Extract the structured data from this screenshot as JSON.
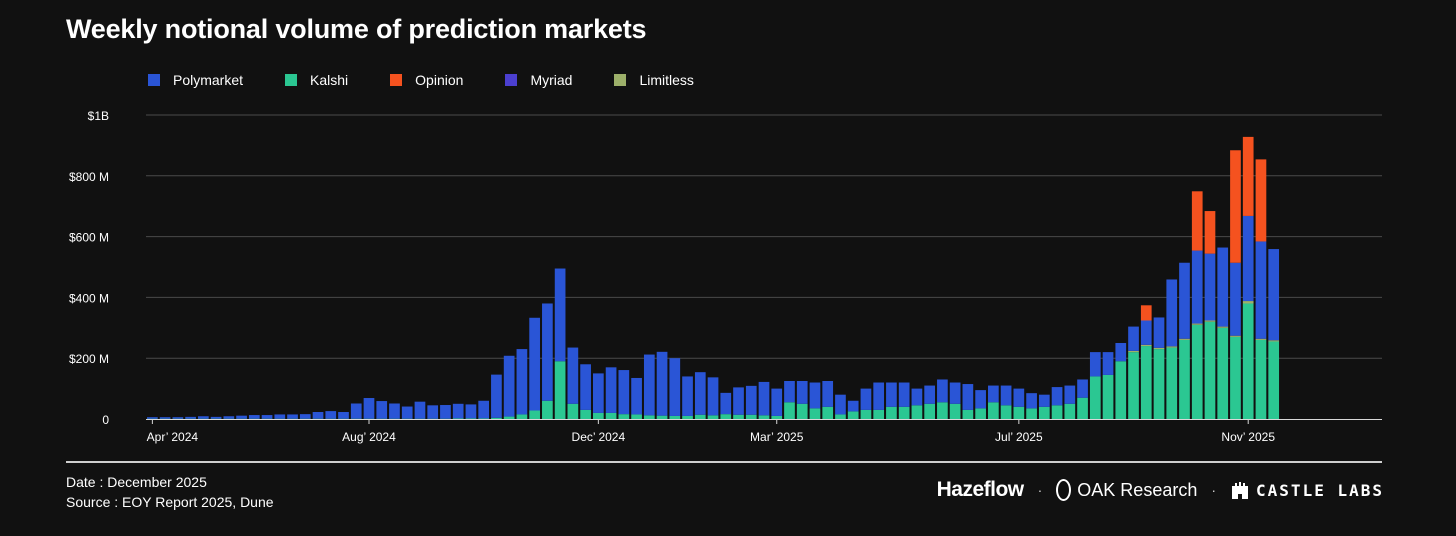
{
  "header": {
    "title": "Weekly notional volume of prediction markets"
  },
  "footer": {
    "date": "Date : December 2025",
    "source": "Source : EOY Report 2025, Dune",
    "brands": {
      "hazeflow": "Hazeflow",
      "oak": "OAK Research",
      "castle": "CASTLE LABS",
      "separator": "·"
    }
  },
  "colors": {
    "Polymarket": "#2a55d6",
    "Kalshi": "#2bc792",
    "Opinion": "#f5521f",
    "Myriad": "#4b3fd0",
    "Limitless": "#9db06a",
    "grid": "#4a4a4a",
    "axis": "#d9d9d9"
  },
  "chart_data": {
    "type": "bar",
    "stacked": true,
    "title": "Weekly notional volume of prediction markets",
    "xlabel": "",
    "ylabel": "",
    "ylim": [
      0,
      1000
    ],
    "y_unit": "M",
    "y_ticks": [
      {
        "value": 0,
        "label": "0"
      },
      {
        "value": 200,
        "label": "$200 M"
      },
      {
        "value": 400,
        "label": "$400 M"
      },
      {
        "value": 600,
        "label": "$600 M"
      },
      {
        "value": 800,
        "label": "$800 M"
      },
      {
        "value": 1000,
        "label": "$1B"
      }
    ],
    "x_tick_labels": [
      {
        "index": 0,
        "label": "Apr’ 2024"
      },
      {
        "index": 17,
        "label": "Aug’ 2024"
      },
      {
        "index": 35,
        "label": "Dec’ 2024"
      },
      {
        "index": 49,
        "label": "Mar’ 2025"
      },
      {
        "index": 68,
        "label": "Jul’ 2025"
      },
      {
        "index": 86,
        "label": "Nov’ 2025"
      }
    ],
    "legend_position": "top-left",
    "grid": true,
    "bar_count": 97,
    "series": [
      {
        "name": "Kalshi",
        "values": [
          1,
          1,
          1,
          1,
          1,
          1,
          1,
          1,
          1,
          1,
          1,
          1,
          1,
          1,
          1,
          1,
          1,
          1,
          1,
          1,
          1,
          1,
          1,
          1,
          2,
          2,
          2,
          4,
          8,
          15,
          28,
          60,
          190,
          50,
          30,
          20,
          20,
          16,
          15,
          12,
          11,
          10,
          10,
          14,
          12,
          16,
          14,
          14,
          12,
          10,
          55,
          50,
          35,
          40,
          15,
          25,
          30,
          30,
          40,
          40,
          45,
          50,
          55,
          50,
          30,
          35,
          55,
          45,
          40,
          35,
          40,
          45,
          50,
          70,
          140,
          145,
          190,
          220,
          240,
          230,
          235,
          260,
          310,
          320,
          300,
          270,
          380,
          260,
          255,
          0,
          0,
          0,
          0,
          0,
          0,
          0,
          0
        ]
      },
      {
        "name": "Limitless",
        "values": [
          0,
          0,
          0,
          0,
          0,
          0,
          0,
          0,
          0,
          0,
          0,
          0,
          0,
          0,
          0,
          0,
          0,
          0,
          0,
          0,
          0,
          0,
          0,
          0,
          0,
          0,
          0,
          0,
          0,
          0,
          0,
          0,
          0,
          0,
          0,
          0,
          0,
          0,
          0,
          0,
          0,
          0,
          0,
          0,
          0,
          0,
          0,
          0,
          0,
          0,
          0,
          0,
          0,
          0,
          0,
          0,
          0,
          0,
          0,
          0,
          0,
          0,
          0,
          0,
          0,
          0,
          0,
          0,
          0,
          0,
          0,
          0,
          0,
          0,
          0,
          0,
          0,
          4,
          4,
          4,
          4,
          4,
          4,
          4,
          4,
          4,
          8,
          4,
          4,
          0,
          0,
          0,
          0,
          0,
          0,
          0,
          0
        ]
      },
      {
        "name": "Myriad",
        "values": [
          0,
          0,
          0,
          0,
          0,
          0,
          0,
          0,
          0,
          0,
          0,
          0,
          0,
          0,
          0,
          0,
          0,
          0,
          0,
          0,
          0,
          0,
          0,
          0,
          0,
          0,
          0,
          0,
          0,
          0,
          0,
          0,
          0,
          0,
          0,
          0,
          0,
          0,
          0,
          0,
          0,
          0,
          0,
          0,
          0,
          0,
          0,
          0,
          0,
          0,
          0,
          0,
          0,
          0,
          0,
          0,
          0,
          0,
          0,
          0,
          0,
          0,
          0,
          0,
          0,
          0,
          0,
          0,
          0,
          0,
          0,
          0,
          0,
          0,
          0,
          0,
          0,
          0,
          0,
          0,
          0,
          0,
          0,
          0,
          0,
          0,
          0,
          0,
          0,
          0,
          0,
          0,
          0,
          0,
          0,
          0,
          0
        ]
      },
      {
        "name": "Polymarket",
        "values": [
          5,
          5,
          5,
          6,
          8,
          6,
          8,
          10,
          12,
          12,
          14,
          14,
          15,
          22,
          25,
          22,
          50,
          68,
          58,
          50,
          40,
          56,
          44,
          45,
          48,
          46,
          58,
          142,
          200,
          215,
          305,
          320,
          305,
          185,
          150,
          130,
          150,
          145,
          120,
          200,
          210,
          190,
          130,
          140,
          125,
          70,
          90,
          95,
          110,
          90,
          70,
          75,
          85,
          85,
          65,
          35,
          70,
          90,
          80,
          80,
          55,
          60,
          75,
          70,
          85,
          60,
          55,
          65,
          60,
          50,
          40,
          60,
          60,
          60,
          80,
          75,
          60,
          80,
          80,
          100,
          220,
          250,
          240,
          220,
          260,
          240,
          280,
          320,
          300,
          0,
          0,
          0,
          0,
          0,
          0,
          0,
          0
        ]
      },
      {
        "name": "Opinion",
        "values": [
          0,
          0,
          0,
          0,
          0,
          0,
          0,
          0,
          0,
          0,
          0,
          0,
          0,
          0,
          0,
          0,
          0,
          0,
          0,
          0,
          0,
          0,
          0,
          0,
          0,
          0,
          0,
          0,
          0,
          0,
          0,
          0,
          0,
          0,
          0,
          0,
          0,
          0,
          0,
          0,
          0,
          0,
          0,
          0,
          0,
          0,
          0,
          0,
          0,
          0,
          0,
          0,
          0,
          0,
          0,
          0,
          0,
          0,
          0,
          0,
          0,
          0,
          0,
          0,
          0,
          0,
          0,
          0,
          0,
          0,
          0,
          0,
          0,
          0,
          0,
          0,
          0,
          0,
          50,
          0,
          0,
          0,
          195,
          140,
          0,
          370,
          260,
          270,
          0,
          0,
          0,
          0,
          0,
          0,
          0,
          0,
          0
        ]
      }
    ]
  }
}
